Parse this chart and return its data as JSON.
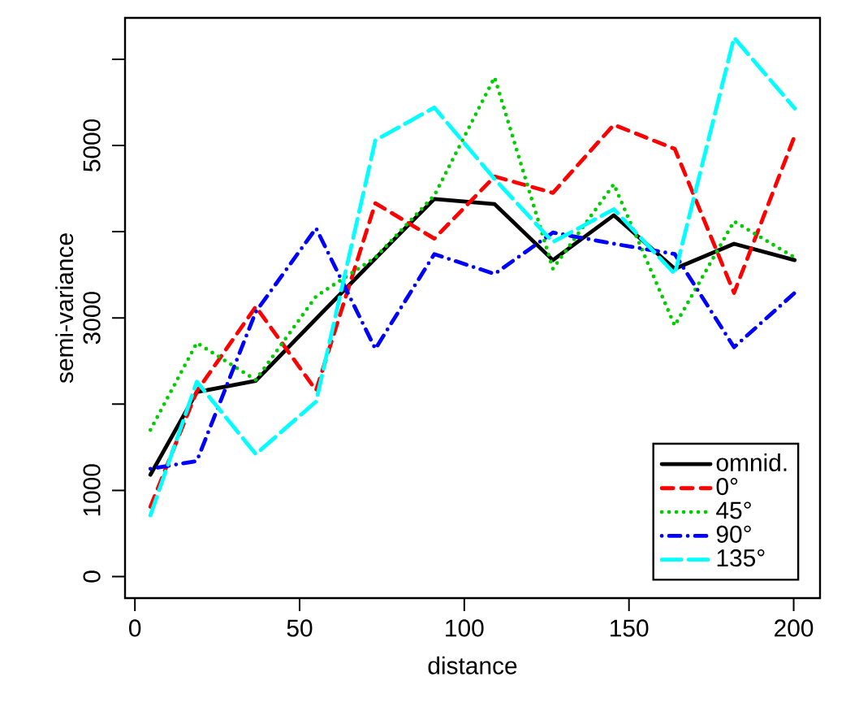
{
  "chart_data": {
    "type": "line",
    "xlabel": "distance",
    "ylabel": "semi-variance",
    "x": [
      4.7,
      18.8,
      36.7,
      55,
      73,
      90.9,
      109.2,
      126.9,
      145.4,
      163.9,
      181.9,
      200.3
    ],
    "xlim": [
      -3,
      208
    ],
    "ylim": [
      -250,
      6480
    ],
    "xticks": [
      0,
      50,
      100,
      150,
      200
    ],
    "yticks": [
      0,
      1000,
      {
        "value": 2000,
        "label": null
      },
      3000,
      {
        "value": 4000,
        "label": null
      },
      5000,
      {
        "value": 6000,
        "label": null
      }
    ],
    "legend": "bottom right",
    "grid": false,
    "series": [
      {
        "name": "omnid.",
        "color": "#000000",
        "line_style": "solid",
        "values": [
          1180,
          2140,
          2270,
          2990,
          3690,
          4380,
          4320,
          3670,
          4190,
          3570,
          3860,
          3670
        ]
      },
      {
        "name": "0°",
        "color": "#ff0000",
        "line_style": "dashed",
        "values": [
          810,
          2150,
          3130,
          2160,
          4330,
          3920,
          4640,
          4450,
          5240,
          4960,
          3290,
          5110
        ]
      },
      {
        "name": "45°",
        "color": "#00cd00",
        "line_style": "dotted",
        "values": [
          1700,
          2710,
          2280,
          3250,
          3700,
          4420,
          5790,
          3570,
          4550,
          2910,
          4120,
          3700
        ]
      },
      {
        "name": "90°",
        "color": "#0000ff",
        "line_style": "dashdot",
        "values": [
          1250,
          1340,
          3070,
          4040,
          2640,
          3740,
          3510,
          3990,
          3860,
          3740,
          2660,
          3290
        ]
      },
      {
        "name": "135°",
        "color": "#00ffff",
        "line_style": "longdash",
        "values": [
          710,
          2260,
          1420,
          2030,
          5060,
          5440,
          4610,
          3880,
          4260,
          3510,
          6250,
          5430
        ]
      }
    ]
  }
}
